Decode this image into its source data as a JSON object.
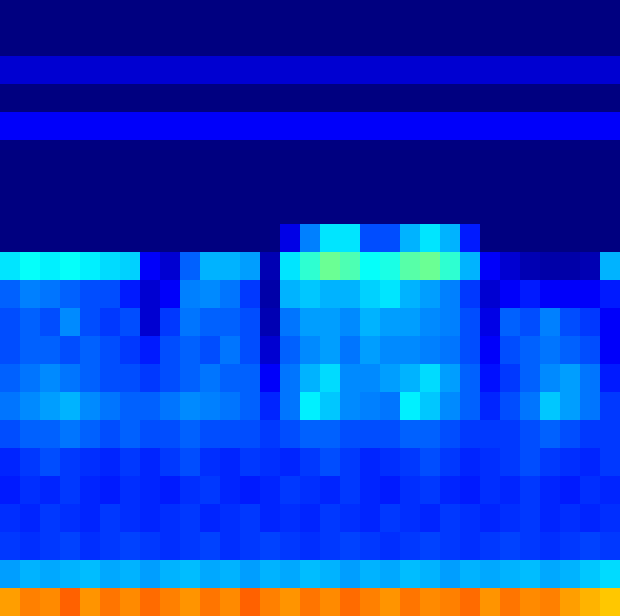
{
  "chart_data": {
    "type": "heatmap",
    "color": "jet",
    "tick_labels": false,
    "clim": [
      0,
      1
    ],
    "values": [
      [
        0,
        0,
        0,
        0,
        0,
        0,
        0,
        0,
        0,
        0,
        0,
        0,
        0,
        0,
        0,
        0,
        0,
        0,
        0,
        0,
        0,
        0,
        0,
        0,
        0,
        0,
        0,
        0,
        0,
        0,
        0
      ],
      [
        0,
        0,
        0,
        0,
        0,
        0,
        0,
        0,
        0,
        0,
        0,
        0,
        0,
        0,
        0,
        0,
        0,
        0,
        0,
        0,
        0,
        0,
        0,
        0,
        0,
        0,
        0,
        0,
        0,
        0,
        0
      ],
      [
        0.08,
        0.08,
        0.08,
        0.08,
        0.08,
        0.08,
        0.08,
        0.08,
        0.08,
        0.08,
        0.08,
        0.08,
        0.08,
        0.08,
        0.08,
        0.08,
        0.08,
        0.08,
        0.08,
        0.08,
        0.08,
        0.08,
        0.08,
        0.08,
        0.08,
        0.08,
        0.08,
        0.08,
        0.08,
        0.08,
        0.08
      ],
      [
        0,
        0,
        0,
        0,
        0,
        0,
        0,
        0,
        0,
        0,
        0,
        0,
        0,
        0,
        0,
        0,
        0,
        0,
        0,
        0,
        0,
        0,
        0,
        0,
        0,
        0,
        0,
        0,
        0,
        0,
        0
      ],
      [
        0.12,
        0.12,
        0.12,
        0.12,
        0.12,
        0.12,
        0.12,
        0.12,
        0.12,
        0.12,
        0.12,
        0.12,
        0.12,
        0.12,
        0.12,
        0.12,
        0.12,
        0.12,
        0.12,
        0.12,
        0.12,
        0.12,
        0.12,
        0.12,
        0.12,
        0.12,
        0.12,
        0.12,
        0.12,
        0.12,
        0.12
      ],
      [
        0,
        0,
        0,
        0,
        0,
        0,
        0,
        0,
        0,
        0,
        0,
        0,
        0,
        0,
        0,
        0,
        0,
        0,
        0,
        0,
        0,
        0,
        0,
        0,
        0,
        0,
        0,
        0,
        0,
        0,
        0
      ],
      [
        0,
        0,
        0,
        0,
        0,
        0,
        0,
        0,
        0,
        0,
        0,
        0,
        0,
        0,
        0,
        0,
        0,
        0,
        0,
        0,
        0,
        0,
        0,
        0,
        0,
        0,
        0,
        0,
        0,
        0,
        0
      ],
      [
        0,
        0,
        0,
        0,
        0,
        0,
        0,
        0,
        0,
        0,
        0,
        0,
        0,
        0,
        0,
        0,
        0,
        0,
        0,
        0,
        0,
        0,
        0,
        0,
        0,
        0,
        0,
        0,
        0,
        0,
        0
      ],
      [
        0,
        0,
        0,
        0,
        0,
        0,
        0,
        0,
        0,
        0,
        0,
        0,
        0,
        0,
        0.1,
        0.25,
        0.35,
        0.35,
        0.2,
        0.2,
        0.3,
        0.35,
        0.3,
        0.15,
        0,
        0,
        0,
        0,
        0,
        0,
        0
      ],
      [
        0.35,
        0.38,
        0.36,
        0.38,
        0.36,
        0.34,
        0.33,
        0.12,
        0.08,
        0.22,
        0.3,
        0.3,
        0.28,
        0.05,
        0.35,
        0.42,
        0.48,
        0.45,
        0.38,
        0.4,
        0.46,
        0.48,
        0.42,
        0.3,
        0.12,
        0.08,
        0.05,
        0.04,
        0.04,
        0.05,
        0.3
      ],
      [
        0.22,
        0.25,
        0.24,
        0.22,
        0.2,
        0.2,
        0.15,
        0.08,
        0.12,
        0.25,
        0.26,
        0.24,
        0.18,
        0.04,
        0.3,
        0.32,
        0.3,
        0.3,
        0.33,
        0.35,
        0.3,
        0.28,
        0.25,
        0.18,
        0.08,
        0.12,
        0.15,
        0.12,
        0.12,
        0.12,
        0.15
      ],
      [
        0.2,
        0.22,
        0.2,
        0.26,
        0.2,
        0.18,
        0.2,
        0.08,
        0.18,
        0.24,
        0.22,
        0.22,
        0.2,
        0.05,
        0.24,
        0.28,
        0.28,
        0.26,
        0.3,
        0.28,
        0.28,
        0.26,
        0.25,
        0.2,
        0.1,
        0.22,
        0.2,
        0.25,
        0.2,
        0.18,
        0.12
      ],
      [
        0.2,
        0.22,
        0.22,
        0.2,
        0.22,
        0.2,
        0.18,
        0.15,
        0.2,
        0.22,
        0.2,
        0.24,
        0.2,
        0.08,
        0.22,
        0.26,
        0.28,
        0.24,
        0.28,
        0.26,
        0.26,
        0.25,
        0.24,
        0.2,
        0.12,
        0.2,
        0.22,
        0.24,
        0.22,
        0.2,
        0.12
      ],
      [
        0.22,
        0.24,
        0.26,
        0.24,
        0.22,
        0.2,
        0.2,
        0.18,
        0.2,
        0.22,
        0.24,
        0.22,
        0.22,
        0.12,
        0.24,
        0.3,
        0.34,
        0.26,
        0.26,
        0.28,
        0.3,
        0.34,
        0.28,
        0.22,
        0.14,
        0.18,
        0.22,
        0.26,
        0.28,
        0.24,
        0.15
      ],
      [
        0.24,
        0.26,
        0.28,
        0.3,
        0.26,
        0.24,
        0.22,
        0.22,
        0.24,
        0.26,
        0.25,
        0.24,
        0.22,
        0.16,
        0.24,
        0.36,
        0.32,
        0.26,
        0.25,
        0.24,
        0.36,
        0.32,
        0.26,
        0.22,
        0.16,
        0.2,
        0.24,
        0.32,
        0.28,
        0.24,
        0.18
      ],
      [
        0.2,
        0.22,
        0.22,
        0.24,
        0.22,
        0.2,
        0.22,
        0.2,
        0.2,
        0.22,
        0.2,
        0.2,
        0.2,
        0.18,
        0.2,
        0.22,
        0.22,
        0.2,
        0.2,
        0.2,
        0.22,
        0.22,
        0.2,
        0.18,
        0.18,
        0.18,
        0.2,
        0.22,
        0.2,
        0.18,
        0.18
      ],
      [
        0.16,
        0.18,
        0.2,
        0.18,
        0.17,
        0.16,
        0.18,
        0.16,
        0.18,
        0.2,
        0.17,
        0.16,
        0.18,
        0.17,
        0.16,
        0.18,
        0.2,
        0.18,
        0.16,
        0.17,
        0.18,
        0.2,
        0.18,
        0.16,
        0.17,
        0.18,
        0.2,
        0.18,
        0.17,
        0.16,
        0.18
      ],
      [
        0.15,
        0.17,
        0.16,
        0.18,
        0.16,
        0.15,
        0.17,
        0.16,
        0.15,
        0.17,
        0.18,
        0.16,
        0.15,
        0.16,
        0.18,
        0.17,
        0.16,
        0.18,
        0.16,
        0.15,
        0.17,
        0.18,
        0.16,
        0.15,
        0.17,
        0.16,
        0.18,
        0.16,
        0.15,
        0.17,
        0.16
      ],
      [
        0.17,
        0.16,
        0.18,
        0.17,
        0.16,
        0.18,
        0.17,
        0.16,
        0.17,
        0.18,
        0.16,
        0.17,
        0.18,
        0.16,
        0.17,
        0.16,
        0.18,
        0.17,
        0.16,
        0.18,
        0.17,
        0.16,
        0.18,
        0.17,
        0.16,
        0.17,
        0.18,
        0.16,
        0.17,
        0.16,
        0.17
      ],
      [
        0.18,
        0.17,
        0.18,
        0.19,
        0.17,
        0.18,
        0.19,
        0.18,
        0.17,
        0.18,
        0.19,
        0.17,
        0.18,
        0.19,
        0.18,
        0.17,
        0.18,
        0.19,
        0.18,
        0.17,
        0.18,
        0.19,
        0.18,
        0.17,
        0.18,
        0.19,
        0.18,
        0.17,
        0.18,
        0.19,
        0.18
      ],
      [
        0.28,
        0.3,
        0.29,
        0.3,
        0.31,
        0.29,
        0.3,
        0.28,
        0.3,
        0.31,
        0.29,
        0.3,
        0.28,
        0.3,
        0.29,
        0.31,
        0.3,
        0.28,
        0.3,
        0.29,
        0.31,
        0.3,
        0.28,
        0.3,
        0.29,
        0.3,
        0.31,
        0.29,
        0.3,
        0.32,
        0.34
      ],
      [
        0.72,
        0.75,
        0.74,
        0.78,
        0.73,
        0.76,
        0.74,
        0.77,
        0.75,
        0.73,
        0.76,
        0.74,
        0.78,
        0.75,
        0.73,
        0.76,
        0.74,
        0.77,
        0.75,
        0.73,
        0.76,
        0.74,
        0.75,
        0.77,
        0.73,
        0.76,
        0.74,
        0.75,
        0.72,
        0.7,
        0.68
      ]
    ]
  }
}
